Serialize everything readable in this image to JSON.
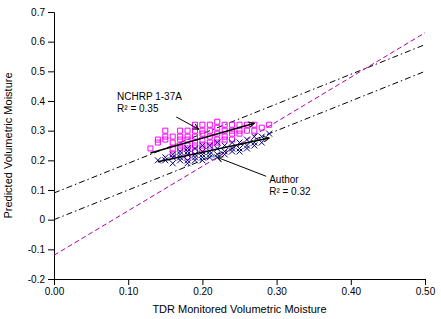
{
  "chart_data": {
    "type": "scatter",
    "xlabel": "TDR Monitored Volumetric Moisture",
    "ylabel": "Predicted Volumetric Moisture",
    "xlim": [
      0.0,
      0.5
    ],
    "ylim": [
      -0.2,
      0.7
    ],
    "xticks": [
      {
        "value": 0.0,
        "label": "0.00"
      },
      {
        "value": 0.1,
        "label": "0.10"
      },
      {
        "value": 0.2,
        "label": "0.20"
      },
      {
        "value": 0.3,
        "label": "0.30"
      },
      {
        "value": 0.4,
        "label": "0.40"
      },
      {
        "value": 0.5,
        "label": "0.50"
      }
    ],
    "yticks": [
      -0.2,
      -0.1,
      0,
      0.1,
      0.2,
      0.3,
      0.4,
      0.5,
      0.6,
      0.7
    ],
    "grid": false,
    "series": [
      {
        "type": "line",
        "color": "#000000",
        "line_style": "dash-dot",
        "x": [
          0.0,
          0.5
        ],
        "values": [
          0.0,
          0.5
        ]
      },
      {
        "type": "line",
        "color": "#000000",
        "line_style": "dash-dot",
        "x": [
          0.0,
          0.5
        ],
        "values": [
          0.09,
          0.59
        ]
      },
      {
        "type": "line",
        "color": "#AA00AA",
        "line_style": "dashed",
        "x": [
          0.0,
          0.5
        ],
        "values": [
          -0.12,
          0.63
        ]
      },
      {
        "type": "scatter",
        "color": "#FF00FF",
        "marker": "square",
        "x": [
          0.13,
          0.14,
          0.14,
          0.15,
          0.15,
          0.15,
          0.16,
          0.16,
          0.16,
          0.16,
          0.17,
          0.17,
          0.17,
          0.17,
          0.17,
          0.18,
          0.18,
          0.18,
          0.18,
          0.18,
          0.18,
          0.19,
          0.19,
          0.19,
          0.19,
          0.19,
          0.19,
          0.2,
          0.2,
          0.2,
          0.2,
          0.2,
          0.2,
          0.21,
          0.21,
          0.21,
          0.21,
          0.21,
          0.22,
          0.22,
          0.22,
          0.22,
          0.22,
          0.23,
          0.23,
          0.23,
          0.23,
          0.24,
          0.24,
          0.24,
          0.24,
          0.25,
          0.25,
          0.25,
          0.26,
          0.26,
          0.27,
          0.27,
          0.28,
          0.29
        ],
        "values": [
          0.24,
          0.26,
          0.27,
          0.27,
          0.28,
          0.3,
          0.22,
          0.24,
          0.26,
          0.28,
          0.24,
          0.25,
          0.27,
          0.28,
          0.3,
          0.21,
          0.24,
          0.25,
          0.27,
          0.28,
          0.3,
          0.23,
          0.25,
          0.26,
          0.28,
          0.3,
          0.32,
          0.24,
          0.25,
          0.27,
          0.29,
          0.3,
          0.32,
          0.25,
          0.26,
          0.28,
          0.3,
          0.32,
          0.26,
          0.27,
          0.29,
          0.31,
          0.33,
          0.27,
          0.28,
          0.3,
          0.32,
          0.27,
          0.29,
          0.3,
          0.32,
          0.29,
          0.3,
          0.32,
          0.3,
          0.32,
          0.3,
          0.32,
          0.31,
          0.32
        ]
      },
      {
        "type": "scatter",
        "color": "#000080",
        "marker": "x",
        "x": [
          0.14,
          0.15,
          0.15,
          0.16,
          0.16,
          0.16,
          0.17,
          0.17,
          0.17,
          0.17,
          0.18,
          0.18,
          0.18,
          0.18,
          0.18,
          0.19,
          0.19,
          0.19,
          0.19,
          0.2,
          0.2,
          0.2,
          0.2,
          0.2,
          0.21,
          0.21,
          0.21,
          0.21,
          0.22,
          0.22,
          0.22,
          0.22,
          0.23,
          0.23,
          0.23,
          0.24,
          0.24,
          0.24,
          0.25,
          0.25,
          0.25,
          0.26,
          0.26,
          0.26,
          0.27,
          0.27,
          0.27,
          0.28,
          0.28,
          0.29
        ],
        "values": [
          0.2,
          0.2,
          0.21,
          0.19,
          0.21,
          0.22,
          0.2,
          0.21,
          0.22,
          0.23,
          0.19,
          0.2,
          0.22,
          0.23,
          0.24,
          0.2,
          0.21,
          0.22,
          0.24,
          0.2,
          0.21,
          0.22,
          0.23,
          0.25,
          0.21,
          0.22,
          0.23,
          0.25,
          0.21,
          0.22,
          0.24,
          0.26,
          0.22,
          0.23,
          0.25,
          0.23,
          0.24,
          0.26,
          0.23,
          0.24,
          0.26,
          0.24,
          0.25,
          0.27,
          0.25,
          0.26,
          0.28,
          0.26,
          0.28,
          0.29
        ]
      },
      {
        "type": "arrow",
        "color": "#000000",
        "line_style": "solid",
        "x": [
          0.13,
          0.27
        ],
        "values": [
          0.225,
          0.325
        ]
      },
      {
        "type": "arrow",
        "color": "#000000",
        "line_style": "solid",
        "x": [
          0.14,
          0.29
        ],
        "values": [
          0.195,
          0.275
        ]
      }
    ],
    "annotations": [
      {
        "text": [
          "NCHRP 1-37A",
          "R² = 0.35"
        ],
        "color": "#000000",
        "xy": [
          0.195,
          0.305
        ],
        "xytext": [
          0.085,
          0.395
        ]
      },
      {
        "text": [
          "Author",
          "R² = 0.32"
        ],
        "color": "#000000",
        "xy": [
          0.22,
          0.21
        ],
        "xytext": [
          0.29,
          0.115
        ]
      }
    ]
  }
}
